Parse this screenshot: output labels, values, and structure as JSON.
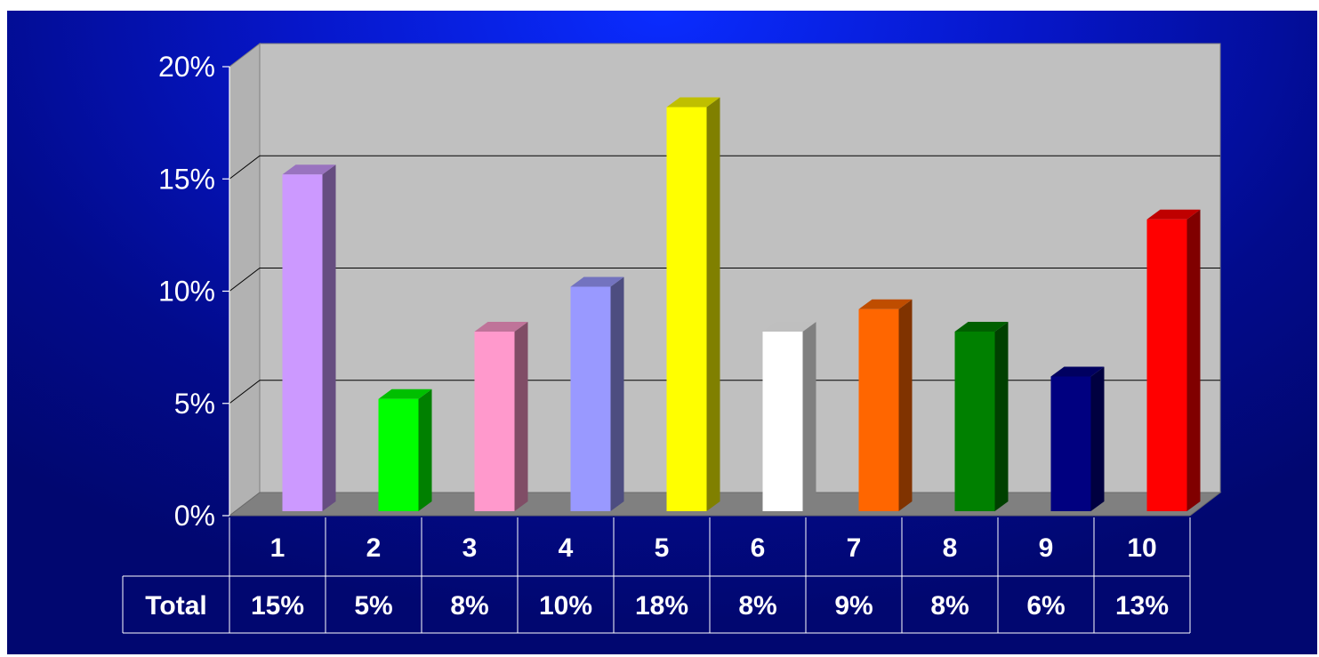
{
  "chart_data": {
    "type": "bar",
    "style": "3d-column-with-data-table",
    "categories": [
      "1",
      "2",
      "3",
      "4",
      "5",
      "6",
      "7",
      "8",
      "9",
      "10"
    ],
    "series": [
      {
        "name": "Total",
        "values": [
          15,
          5,
          8,
          10,
          18,
          8,
          9,
          8,
          6,
          13
        ],
        "labels": [
          "15%",
          "5%",
          "8%",
          "10%",
          "18%",
          "8%",
          "9%",
          "8%",
          "6%",
          "13%"
        ]
      }
    ],
    "bar_colors": [
      "#cc99ff",
      "#00ff00",
      "#ff99cc",
      "#9999ff",
      "#ffff00",
      "#ffffff",
      "#ff6600",
      "#008000",
      "#000080",
      "#ff0000"
    ],
    "ylim": [
      0,
      20
    ],
    "yticks": [
      0,
      5,
      10,
      15,
      20
    ],
    "ytick_labels": [
      "0%",
      "5%",
      "10%",
      "15%",
      "20%"
    ],
    "grid": true,
    "legend": "none",
    "colors": {
      "background": "#0616c8",
      "plot_wall": "#c0c0c0",
      "floor": "#808080",
      "text": "#ffffff"
    }
  }
}
